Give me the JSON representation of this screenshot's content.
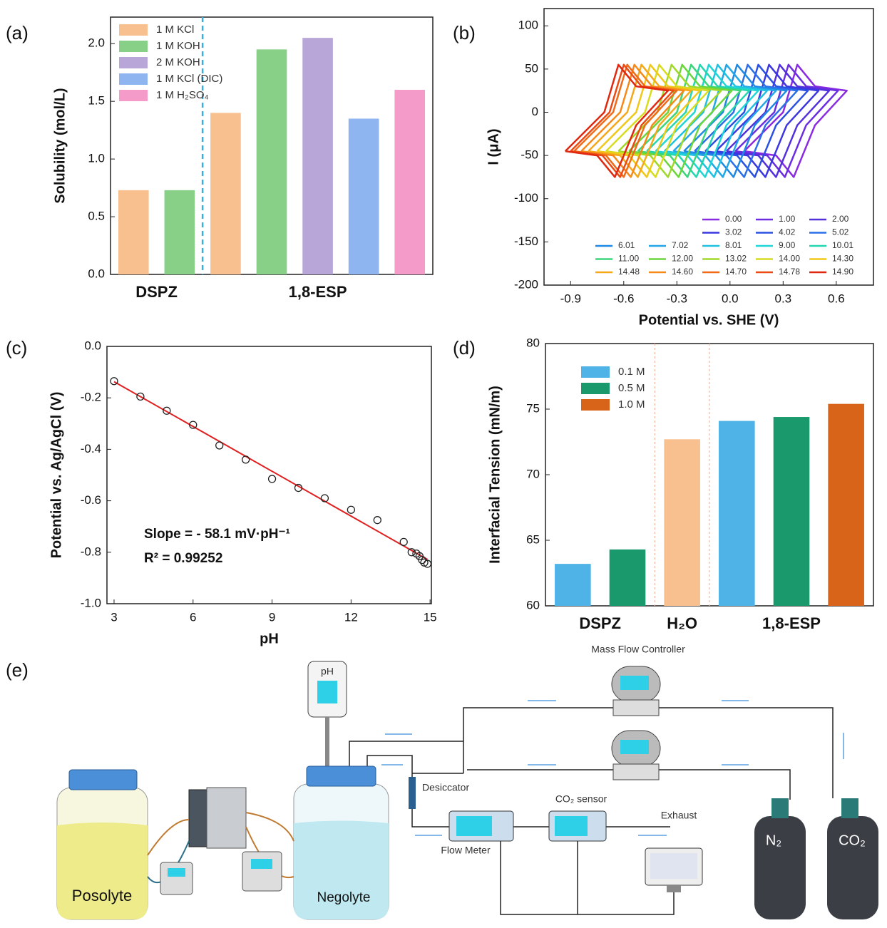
{
  "chart_data": [
    {
      "type": "bar",
      "panel_label": "(a)",
      "y_label": "Solubility (mol/L)",
      "categories": [
        "DSPZ",
        "1,8-ESP"
      ],
      "series": [
        {
          "name": "1 M KCl",
          "color": "#f8c08e",
          "values": [
            0.73,
            1.4
          ]
        },
        {
          "name": "1 M KOH",
          "color": "#88cf88",
          "values": [
            0.73,
            1.95
          ]
        },
        {
          "name": "2 M KOH",
          "color": "#b8a6d8",
          "values": [
            null,
            2.05
          ]
        },
        {
          "name": "1 M KCl (DIC)",
          "color": "#8fb5f0",
          "values": [
            null,
            1.35
          ]
        },
        {
          "name": "1 M H₂SO₄",
          "color": "#f49bca",
          "values": [
            null,
            1.6
          ]
        }
      ],
      "ylim": [
        0,
        2.23
      ],
      "yticks": [
        {
          "value": 0,
          "label": "0.0"
        },
        0.5,
        {
          "value": 1,
          "label": "1.0"
        },
        1.5,
        {
          "value": 2,
          "label": "2.0"
        }
      ],
      "legend": "upper left"
    },
    {
      "type": "line",
      "panel_label": "(b)",
      "x_label": "Potential vs. SHE (V)",
      "y_label": "I (μA)",
      "series": [
        {
          "name": "0.00",
          "color": "#8a2be2",
          "x": [
            0.08,
            0.3,
            0.38,
            0.48,
            0.66,
            0.48,
            0.36,
            0.26,
            0.08
          ],
          "values": [
            -45,
            0,
            55,
            30,
            25,
            -15,
            -75,
            -50,
            -45
          ]
        },
        {
          "name": "1.00",
          "color": "#6a2de0",
          "x": [
            0.03,
            0.25,
            0.33,
            0.43,
            0.61,
            0.43,
            0.31,
            0.21,
            0.03
          ],
          "values": [
            -45,
            0,
            55,
            30,
            25,
            -15,
            -75,
            -50,
            -45
          ]
        },
        {
          "name": "2.00",
          "color": "#5230dc",
          "x": [
            -0.02,
            0.2,
            0.28,
            0.38,
            0.56,
            0.38,
            0.26,
            0.16,
            -0.02
          ],
          "values": [
            -45,
            0,
            55,
            30,
            25,
            -15,
            -75,
            -50,
            -45
          ]
        },
        {
          "name": "3.02",
          "color": "#3a36e0",
          "x": [
            -0.08,
            0.14,
            0.22,
            0.32,
            0.5,
            0.32,
            0.2,
            0.1,
            -0.08
          ],
          "values": [
            -45,
            0,
            55,
            30,
            25,
            -15,
            -75,
            -50,
            -45
          ]
        },
        {
          "name": "4.02",
          "color": "#2a50e2",
          "x": [
            -0.14,
            0.08,
            0.16,
            0.26,
            0.44,
            0.26,
            0.14,
            0.04,
            -0.14
          ],
          "values": [
            -45,
            0,
            55,
            30,
            25,
            -15,
            -75,
            -50,
            -45
          ]
        },
        {
          "name": "5.02",
          "color": "#2a6ee8",
          "x": [
            -0.2,
            0.02,
            0.1,
            0.2,
            0.38,
            0.2,
            0.08,
            -0.02,
            -0.2
          ],
          "values": [
            -45,
            0,
            55,
            30,
            25,
            -15,
            -75,
            -50,
            -45
          ]
        },
        {
          "name": "6.01",
          "color": "#1e88e5",
          "x": [
            -0.26,
            -0.04,
            0.04,
            0.14,
            0.32,
            0.14,
            0.02,
            -0.08,
            -0.26
          ],
          "values": [
            -45,
            0,
            55,
            30,
            25,
            -15,
            -75,
            -50,
            -45
          ]
        },
        {
          "name": "7.02",
          "color": "#22a6e8",
          "x": [
            -0.32,
            -0.1,
            -0.02,
            0.08,
            0.26,
            0.08,
            -0.04,
            -0.14,
            -0.32
          ],
          "values": [
            -45,
            0,
            55,
            30,
            25,
            -15,
            -75,
            -50,
            -45
          ]
        },
        {
          "name": "8.01",
          "color": "#20c0e0",
          "x": [
            -0.37,
            -0.15,
            -0.07,
            0.03,
            0.21,
            0.03,
            -0.09,
            -0.19,
            -0.37
          ],
          "values": [
            -45,
            0,
            55,
            30,
            25,
            -15,
            -75,
            -50,
            -45
          ]
        },
        {
          "name": "9.00",
          "color": "#1ed6d6",
          "x": [
            -0.42,
            -0.2,
            -0.12,
            -0.02,
            0.16,
            -0.02,
            -0.14,
            -0.24,
            -0.42
          ],
          "values": [
            -45,
            0,
            55,
            30,
            25,
            -15,
            -75,
            -50,
            -45
          ]
        },
        {
          "name": "10.01",
          "color": "#22d6b0",
          "x": [
            -0.47,
            -0.25,
            -0.17,
            -0.07,
            0.11,
            -0.07,
            -0.19,
            -0.29,
            -0.47
          ],
          "values": [
            -45,
            0,
            55,
            30,
            25,
            -15,
            -75,
            -50,
            -45
          ]
        },
        {
          "name": "11.00",
          "color": "#3cd67a",
          "x": [
            -0.52,
            -0.3,
            -0.22,
            -0.12,
            0.06,
            -0.12,
            -0.24,
            -0.34,
            -0.52
          ],
          "values": [
            -45,
            0,
            55,
            30,
            25,
            -15,
            -75,
            -50,
            -45
          ]
        },
        {
          "name": "12.00",
          "color": "#6ad63c",
          "x": [
            -0.57,
            -0.35,
            -0.27,
            -0.17,
            0.01,
            -0.17,
            -0.29,
            -0.39,
            -0.57
          ],
          "values": [
            -45,
            0,
            55,
            30,
            25,
            -15,
            -75,
            -50,
            -45
          ]
        },
        {
          "name": "13.02",
          "color": "#a0d82a",
          "x": [
            -0.63,
            -0.41,
            -0.33,
            -0.23,
            -0.05,
            -0.23,
            -0.35,
            -0.45,
            -0.63
          ],
          "values": [
            -45,
            0,
            55,
            30,
            25,
            -15,
            -75,
            -50,
            -45
          ]
        },
        {
          "name": "14.00",
          "color": "#d8dc20",
          "x": [
            -0.7,
            -0.48,
            -0.4,
            -0.3,
            -0.12,
            -0.3,
            -0.42,
            -0.52,
            -0.7
          ],
          "values": [
            -45,
            0,
            55,
            30,
            25,
            -15,
            -75,
            -50,
            -45
          ]
        },
        {
          "name": "14.30",
          "color": "#f0c818",
          "x": [
            -0.75,
            -0.53,
            -0.45,
            -0.35,
            -0.17,
            -0.35,
            -0.47,
            -0.57,
            -0.75
          ],
          "values": [
            -45,
            0,
            55,
            30,
            25,
            -15,
            -75,
            -50,
            -45
          ]
        },
        {
          "name": "14.48",
          "color": "#f5a81a",
          "x": [
            -0.8,
            -0.58,
            -0.5,
            -0.4,
            -0.22,
            -0.4,
            -0.52,
            -0.62,
            -0.8
          ],
          "values": [
            -45,
            0,
            55,
            30,
            25,
            -15,
            -75,
            -50,
            -45
          ]
        },
        {
          "name": "14.60",
          "color": "#f58a1a",
          "x": [
            -0.84,
            -0.62,
            -0.54,
            -0.44,
            -0.26,
            -0.44,
            -0.56,
            -0.66,
            -0.84
          ],
          "values": [
            -45,
            0,
            55,
            30,
            25,
            -15,
            -75,
            -50,
            -45
          ]
        },
        {
          "name": "14.70",
          "color": "#f06a18",
          "x": [
            -0.88,
            -0.66,
            -0.58,
            -0.48,
            -0.3,
            -0.48,
            -0.6,
            -0.7,
            -0.88
          ],
          "values": [
            -45,
            0,
            55,
            30,
            25,
            -15,
            -75,
            -50,
            -45
          ]
        },
        {
          "name": "14.78",
          "color": "#ea4a14",
          "x": [
            -0.9,
            -0.68,
            -0.6,
            -0.5,
            -0.32,
            -0.5,
            -0.62,
            -0.72,
            -0.9
          ],
          "values": [
            -45,
            0,
            55,
            30,
            25,
            -15,
            -75,
            -50,
            -45
          ]
        },
        {
          "name": "14.90",
          "color": "#e02810",
          "x": [
            -0.93,
            -0.71,
            -0.63,
            -0.53,
            -0.35,
            -0.53,
            -0.65,
            -0.75,
            -0.93
          ],
          "values": [
            -45,
            0,
            55,
            30,
            25,
            -15,
            -75,
            -50,
            -45
          ]
        }
      ],
      "xlim": [
        -1.05,
        0.81
      ],
      "xticks": [
        -0.9,
        -0.6,
        -0.3,
        {
          "value": 0,
          "label": "0.0"
        },
        0.3,
        0.6
      ],
      "ylim": [
        -200,
        120
      ],
      "yticks": [
        -200,
        -150,
        -100,
        -50,
        0,
        50,
        100
      ],
      "legend": "lower right"
    },
    {
      "type": "scatter",
      "panel_label": "(c)",
      "x_label": "pH",
      "y_label": "Potential  vs. Ag/AgCl (V)",
      "annotations": [
        "Slope = - 58.1 mV·pH⁻¹",
        "R² = 0.99252"
      ],
      "points": {
        "x": [
          3,
          4,
          5,
          6,
          7,
          8,
          9,
          10,
          11,
          12,
          13,
          14,
          14.3,
          14.48,
          14.6,
          14.7,
          14.78,
          14.9
        ],
        "values": [
          -0.135,
          -0.195,
          -0.25,
          -0.305,
          -0.385,
          -0.44,
          -0.515,
          -0.55,
          -0.59,
          -0.635,
          -0.675,
          -0.76,
          -0.8,
          -0.805,
          -0.815,
          -0.83,
          -0.84,
          -0.845
        ]
      },
      "fit": {
        "color": "#e02020",
        "x": [
          3,
          14.9
        ],
        "values": [
          -0.137,
          -0.828
        ]
      },
      "xlim": [
        2.73,
        15.05
      ],
      "xticks": [
        3,
        6,
        9,
        12,
        15
      ],
      "ylim": [
        -1,
        0
      ],
      "yticks": [
        {
          "value": -1,
          "label": "-1.0"
        },
        -0.8,
        -0.6,
        -0.4,
        -0.2,
        {
          "value": 0,
          "label": "0.0"
        }
      ]
    },
    {
      "type": "bar",
      "panel_label": "(d)",
      "y_label": "Interfacial Tension (mN/m)",
      "categories": [
        "DSPZ",
        "H₂O",
        "1,8-ESP"
      ],
      "series": [
        {
          "name": "0.1 M",
          "color": "#4fb3e8",
          "values": [
            63.2,
            null,
            74.1
          ]
        },
        {
          "name": "0.5 M",
          "color": "#1a9a6c",
          "values": [
            64.3,
            null,
            74.4
          ]
        },
        {
          "name": "1.0 M",
          "color": "#d8641a",
          "values": [
            null,
            null,
            75.4
          ]
        },
        {
          "color": "#f8c08e",
          "values": [
            null,
            72.7,
            null
          ]
        }
      ],
      "ylim": [
        60,
        80
      ],
      "yticks": [
        60,
        65,
        70,
        75,
        80
      ],
      "legend": "upper left"
    }
  ],
  "diagram": {
    "panel_label": "(e)",
    "mass_flow_controller": "Mass Flow Controller",
    "ph": "pH",
    "desiccator": "Desiccator",
    "co2_sensor": "CO₂ sensor",
    "exhaust": "Exhaust",
    "flow_meter": "Flow Meter",
    "n2": "N₂",
    "co2": "CO₂",
    "posolyte": "Posolyte",
    "negolyte": "Negolyte"
  }
}
